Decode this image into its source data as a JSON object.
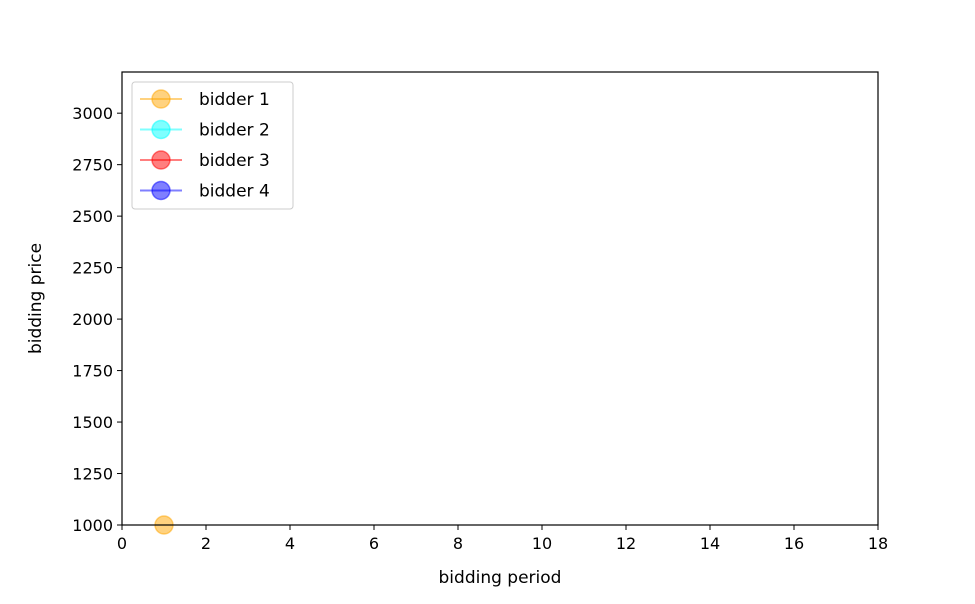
{
  "chart_data": {
    "type": "line",
    "title": "",
    "xlabel": "bidding period",
    "ylabel": "bidding price",
    "xlim": [
      0,
      18
    ],
    "ylim": [
      1000,
      3200
    ],
    "xticks": [
      0,
      2,
      4,
      6,
      8,
      10,
      12,
      14,
      16,
      18
    ],
    "yticks": [
      1000,
      1250,
      1500,
      1750,
      2000,
      2250,
      2500,
      2750,
      3000
    ],
    "grid": false,
    "legend_position": "upper-left",
    "series": [
      {
        "name": "bidder 1",
        "color": "#FFA500",
        "marker": "circle",
        "x": [
          1
        ],
        "y": [
          1000
        ]
      },
      {
        "name": "bidder 2",
        "color": "#00FFFF",
        "marker": "circle",
        "x": [],
        "y": []
      },
      {
        "name": "bidder 3",
        "color": "#FF0000",
        "marker": "circle",
        "x": [],
        "y": []
      },
      {
        "name": "bidder 4",
        "color": "#0000FF",
        "marker": "circle",
        "x": [],
        "y": []
      }
    ]
  }
}
